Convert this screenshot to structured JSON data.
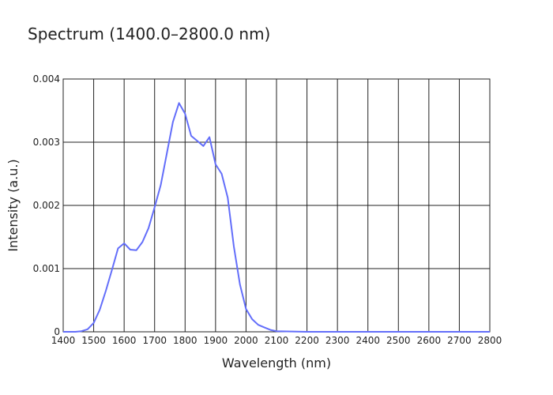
{
  "chart_data": {
    "type": "line",
    "title": "Spectrum (1400.0–2800.0 nm)",
    "xlabel": "Wavelength (nm)",
    "ylabel": "Intensity (a.u.)",
    "xlim": [
      1400,
      2800
    ],
    "ylim": [
      0,
      0.004
    ],
    "x_ticks": [
      1400,
      1500,
      1600,
      1700,
      1800,
      1900,
      2000,
      2100,
      2200,
      2300,
      2400,
      2500,
      2600,
      2700,
      2800
    ],
    "x_tick_labels": [
      "1400",
      "1500",
      "1600",
      "1700",
      "1800",
      "1900",
      "2000",
      "2100",
      "2200",
      "2300",
      "2400",
      "2500",
      "2600",
      "2700",
      "2800"
    ],
    "y_ticks": [
      0,
      0.001,
      0.002,
      0.003,
      0.004
    ],
    "y_tick_labels": [
      "0",
      "0.001",
      "0.002",
      "0.003",
      "0.004"
    ],
    "grid": true,
    "line_color": "#636efa",
    "series": [
      {
        "x": [
          1400,
          1440,
          1460,
          1480,
          1500,
          1520,
          1540,
          1560,
          1580,
          1600,
          1620,
          1640,
          1660,
          1680,
          1700,
          1720,
          1740,
          1760,
          1780,
          1800,
          1820,
          1840,
          1860,
          1880,
          1900,
          1920,
          1940,
          1960,
          1980,
          2000,
          2020,
          2040,
          2060,
          2080,
          2100,
          2150,
          2200,
          2300,
          2400,
          2500,
          2600,
          2700,
          2800
        ],
        "y": [
          0,
          0,
          1e-05,
          4e-05,
          0.00014,
          0.00035,
          0.00065,
          0.00098,
          0.00132,
          0.0014,
          0.0013,
          0.00129,
          0.00142,
          0.00164,
          0.00197,
          0.00232,
          0.00282,
          0.00332,
          0.00362,
          0.00345,
          0.0031,
          0.00302,
          0.00294,
          0.00308,
          0.00265,
          0.0025,
          0.00212,
          0.00135,
          0.00075,
          0.00036,
          0.0002,
          0.00011,
          7e-05,
          3e-05,
          1e-05,
          5e-06,
          0,
          0,
          0,
          0,
          0,
          0,
          0
        ]
      }
    ]
  }
}
